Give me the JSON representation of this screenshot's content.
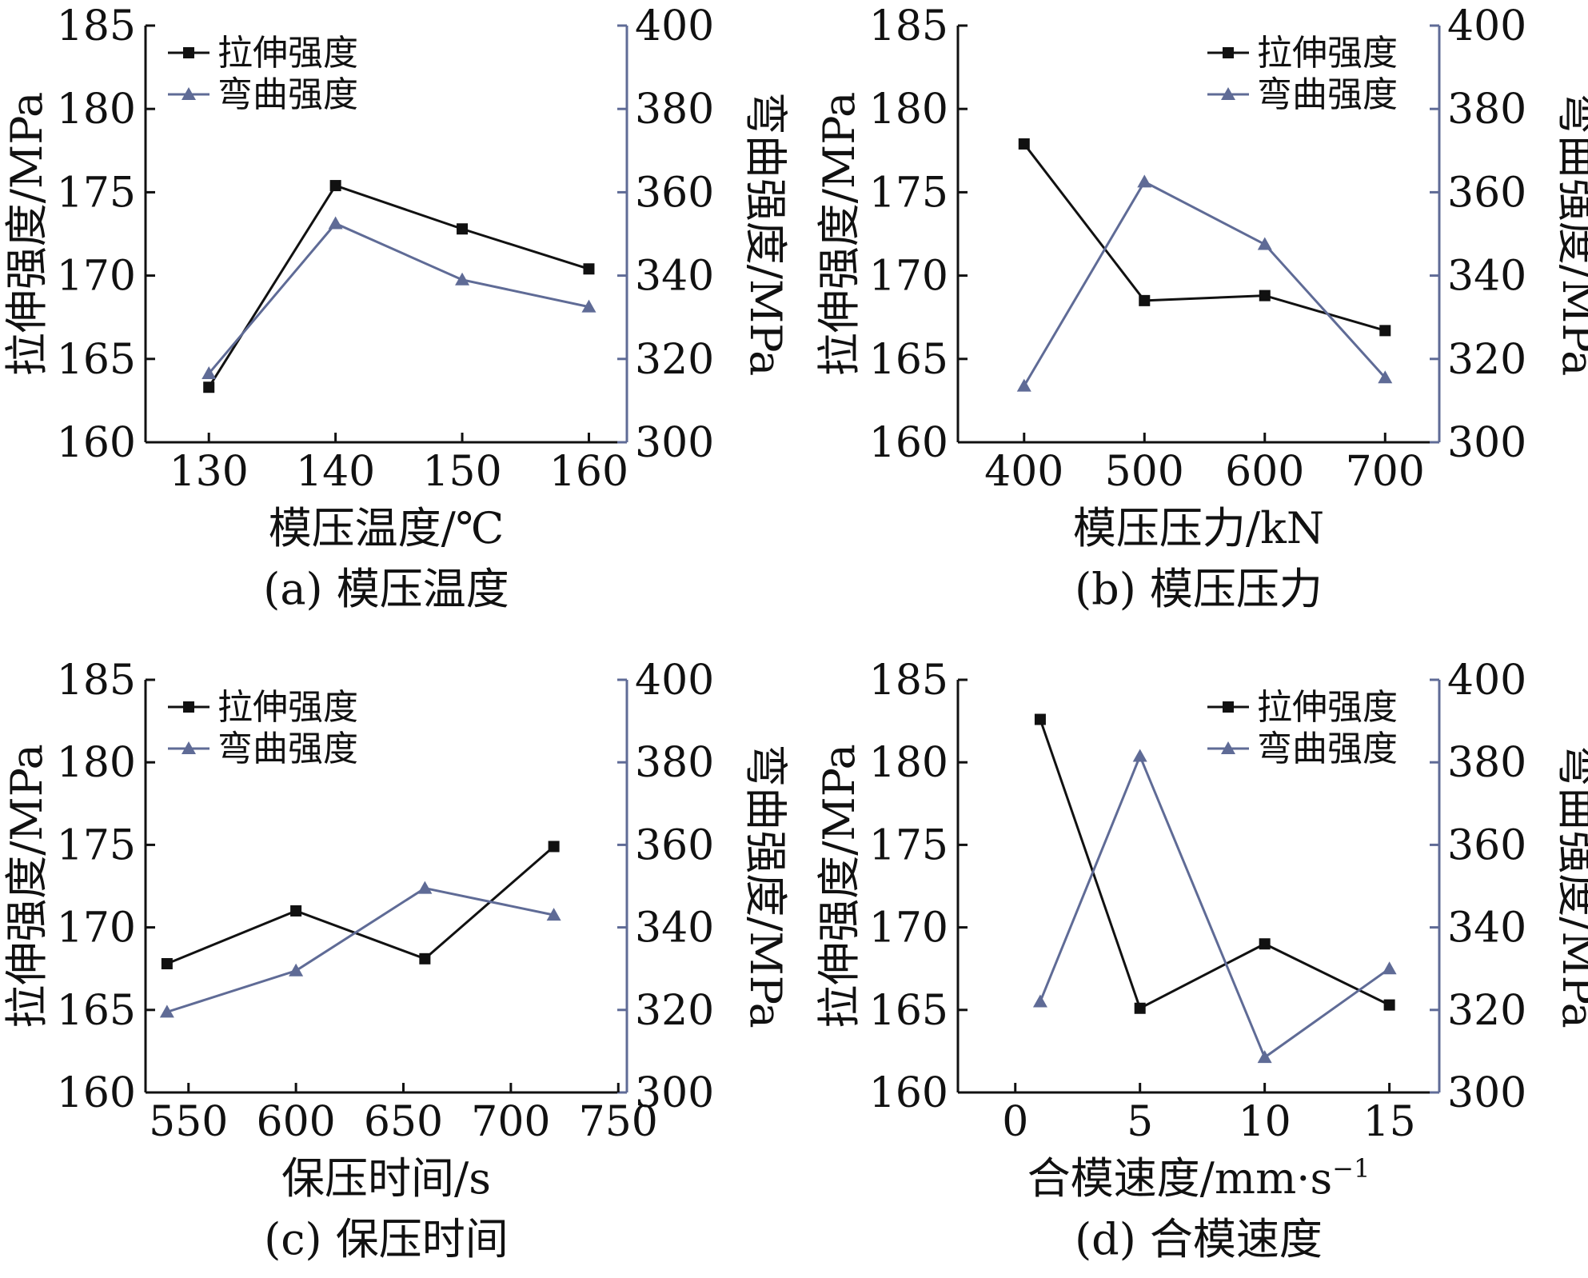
{
  "colors": {
    "tensile": "#111111",
    "flexural": "#5f6b96",
    "axis": "#111111"
  },
  "series_names": {
    "tensile": "拉伸强度",
    "flexural": "弯曲强度"
  },
  "chart_data": [
    {
      "type": "line",
      "caption": "(a) 模压温度",
      "xlabel": "模压温度/℃",
      "ylabel_left": "拉伸强度/MPa",
      "ylabel_right": "弯曲强度/MPa",
      "legend_position": "top-left",
      "x_ticks": [
        130,
        140,
        150,
        160
      ],
      "xlim": [
        125,
        163
      ],
      "ylim_left": [
        160,
        185
      ],
      "yticks_left": [
        160,
        165,
        170,
        175,
        180,
        185
      ],
      "ylim_right": [
        300,
        400
      ],
      "yticks_right": [
        300,
        320,
        340,
        360,
        380,
        400
      ],
      "series": [
        {
          "name": "拉伸强度",
          "axis": "left",
          "marker": "square",
          "x": [
            130,
            140,
            150,
            160
          ],
          "values": [
            163.3,
            175.4,
            172.8,
            170.4
          ]
        },
        {
          "name": "弯曲强度",
          "axis": "right",
          "marker": "triangle",
          "x": [
            130,
            140,
            150,
            160
          ],
          "values": [
            316.5,
            352.5,
            339,
            332.5
          ]
        }
      ]
    },
    {
      "type": "line",
      "caption": "(b) 模压压力",
      "xlabel": "模压压力/kN",
      "ylabel_left": "拉伸强度/MPa",
      "ylabel_right": "弯曲强度/MPa",
      "legend_position": "top-right",
      "x_ticks": [
        400,
        500,
        600,
        700
      ],
      "xlim": [
        345,
        745
      ],
      "ylim_left": [
        160,
        185
      ],
      "yticks_left": [
        160,
        165,
        170,
        175,
        180,
        185
      ],
      "ylim_right": [
        300,
        400
      ],
      "yticks_right": [
        300,
        320,
        340,
        360,
        380,
        400
      ],
      "series": [
        {
          "name": "拉伸强度",
          "axis": "left",
          "marker": "square",
          "x": [
            400,
            500,
            600,
            700
          ],
          "values": [
            177.9,
            168.5,
            168.8,
            166.7
          ]
        },
        {
          "name": "弯曲强度",
          "axis": "right",
          "marker": "triangle",
          "x": [
            400,
            500,
            600,
            700
          ],
          "values": [
            313.5,
            362.5,
            347.5,
            315.5
          ]
        }
      ]
    },
    {
      "type": "line",
      "caption": "(c) 保压时间",
      "xlabel": "保压时间/s",
      "ylabel_left": "拉伸强度/MPa",
      "ylabel_right": "弯曲强度/MPa",
      "legend_position": "top-left",
      "x_ticks": [
        550,
        600,
        650,
        700,
        750
      ],
      "xlim": [
        530,
        754
      ],
      "ylim_left": [
        160,
        185
      ],
      "yticks_left": [
        160,
        165,
        170,
        175,
        180,
        185
      ],
      "ylim_right": [
        300,
        400
      ],
      "yticks_right": [
        300,
        320,
        340,
        360,
        380,
        400
      ],
      "series": [
        {
          "name": "拉伸强度",
          "axis": "left",
          "marker": "square",
          "x": [
            540,
            600,
            660,
            720
          ],
          "values": [
            167.8,
            171,
            168.1,
            174.9
          ]
        },
        {
          "name": "弯曲强度",
          "axis": "right",
          "marker": "triangle",
          "x": [
            540,
            600,
            660,
            720
          ],
          "values": [
            319.5,
            329.5,
            349.5,
            343
          ]
        }
      ]
    },
    {
      "type": "line",
      "caption": "(d) 合模速度",
      "xlabel": "合模速度/mm·s",
      "xlabel_superscript": "−1",
      "ylabel_left": "拉伸强度/MPa",
      "ylabel_right": "弯曲强度/MPa",
      "legend_position": "top-right",
      "x_ticks": [
        0,
        5,
        10,
        15
      ],
      "xlim": [
        -2.3,
        17
      ],
      "ylim_left": [
        160,
        185
      ],
      "yticks_left": [
        160,
        165,
        170,
        175,
        180,
        185
      ],
      "ylim_right": [
        300,
        400
      ],
      "yticks_right": [
        300,
        320,
        340,
        360,
        380,
        400
      ],
      "series": [
        {
          "name": "拉伸强度",
          "axis": "left",
          "marker": "square",
          "x": [
            1,
            5,
            10,
            15
          ],
          "values": [
            182.6,
            165.1,
            169,
            165.3
          ]
        },
        {
          "name": "弯曲强度",
          "axis": "right",
          "marker": "triangle",
          "x": [
            1,
            5,
            10,
            15
          ],
          "values": [
            322,
            381.5,
            308.5,
            330
          ]
        }
      ]
    }
  ]
}
